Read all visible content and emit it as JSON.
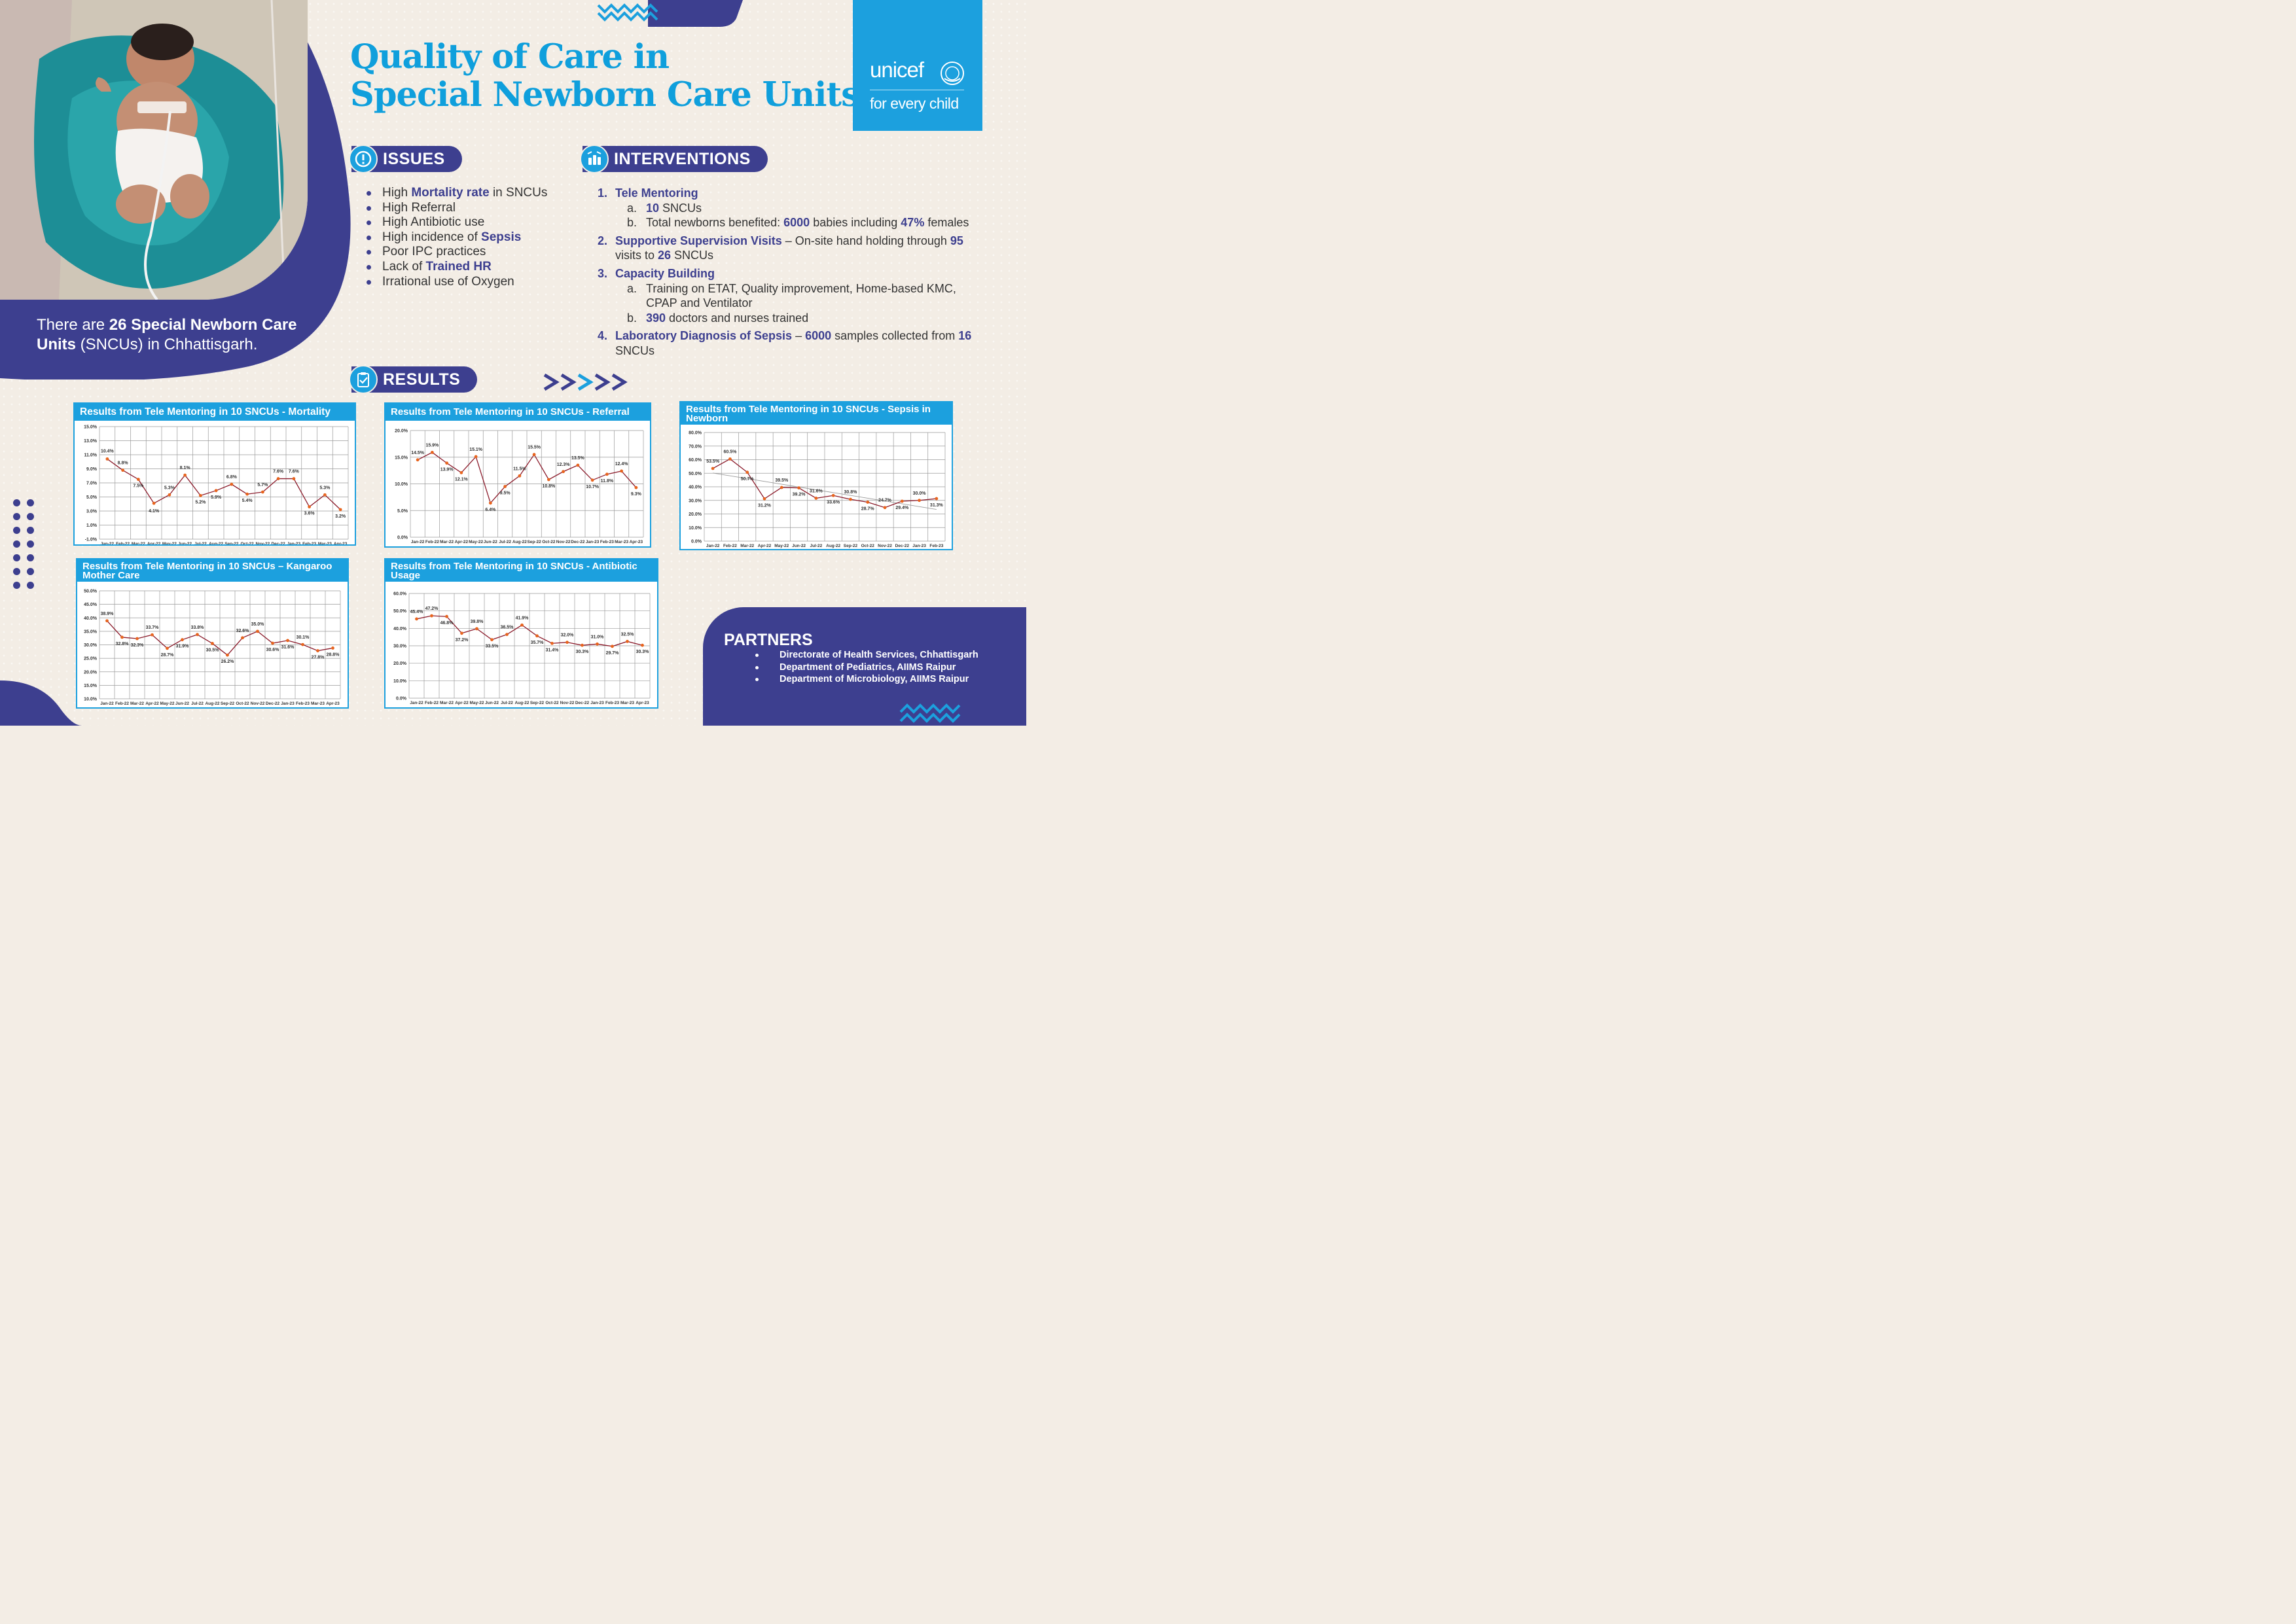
{
  "hero": {
    "photo_alt": "Newborn baby lying on a teal blanket in a care unit",
    "text_pre": "There are ",
    "text_bold1": "26 Special Newborn Care",
    "text_bold2": "Units",
    "text_post": " (SNCUs) in Chhattisgarh."
  },
  "title": {
    "line1": "Quality of Care in",
    "line2": "Special Newborn Care Units"
  },
  "logo": {
    "name": "unicef",
    "tagline": "for every child",
    "icon": "unicef-emblem-icon"
  },
  "colors": {
    "navy": "#3d3f8f",
    "blue": "#1ca0de",
    "line": "#8b1a2a",
    "marker": "#e8641e",
    "trend": "#9a9a9a"
  },
  "issues": {
    "heading": "ISSUES",
    "icon": "exclamation-icon",
    "items": [
      {
        "pre": "High ",
        "bold": "Mortality rate",
        "post": " in SNCUs"
      },
      {
        "pre": "High Referral",
        "bold": "",
        "post": ""
      },
      {
        "pre": "High Antibiotic use",
        "bold": "",
        "post": ""
      },
      {
        "pre": "High incidence of ",
        "bold": "Sepsis",
        "post": ""
      },
      {
        "pre": "Poor IPC practices",
        "bold": "",
        "post": ""
      },
      {
        "pre": "Lack of ",
        "bold": "Trained HR",
        "post": ""
      },
      {
        "pre": "Irrational use of Oxygen",
        "bold": "",
        "post": ""
      }
    ]
  },
  "interventions": {
    "heading": "INTERVENTIONS",
    "icon": "hands-icon",
    "i1": {
      "num": "1.",
      "title": "Tele Mentoring",
      "a_label": "a.",
      "a_bold": "10",
      "a_text": " SNCUs",
      "b_label": "b.",
      "b_pre": "Total newborns benefited: ",
      "b_bold1": "6000",
      "b_mid": " babies including ",
      "b_bold2": "47%",
      "b_post": " females"
    },
    "i2": {
      "num": "2.",
      "title": "Supportive Supervision Visits",
      "pre": " – On-site hand holding through ",
      "bold1": "95",
      "mid": " visits to ",
      "bold2": "26",
      "post": " SNCUs"
    },
    "i3": {
      "num": "3.",
      "title": "Capacity Building",
      "a_label": "a.",
      "a_text": "Training on ETAT, Quality improvement, Home-based KMC, CPAP and Ventilator",
      "b_label": "b.",
      "b_bold": "390",
      "b_text": " doctors and nurses trained"
    },
    "i4": {
      "num": "4.",
      "title": "Laboratory Diagnosis of Sepsis",
      "pre": " – ",
      "bold1": "6000",
      "mid": " samples collected from ",
      "bold2": "16",
      "post": " SNCUs"
    }
  },
  "results": {
    "heading": "RESULTS",
    "icon": "clipboard-icon"
  },
  "partners": {
    "heading": "PARTNERS",
    "items": [
      "Directorate of Health Services, Chhattisgarh",
      "Department of Pediatrics, AIIMS Raipur",
      "Department of Microbiology, AIIMS Raipur"
    ]
  },
  "chart_data": [
    {
      "type": "line",
      "title": "Results from Tele Mentoring in 10 SNCUs - Mortality",
      "categories": [
        "Jan-22",
        "Feb-22",
        "Mar-22",
        "Apr-22",
        "May-22",
        "Jun-22",
        "Jul-22",
        "Aug-22",
        "Sep-22",
        "Oct-22",
        "Nov-22",
        "Dec-22",
        "Jan-23",
        "Feb-23",
        "Mar-23",
        "Apr-23"
      ],
      "values": [
        10.4,
        8.8,
        7.5,
        4.1,
        5.3,
        8.1,
        5.2,
        5.9,
        6.8,
        5.4,
        5.7,
        7.6,
        7.6,
        3.6,
        5.3,
        3.2
      ],
      "ylim": [
        -1,
        15
      ],
      "yticks": [
        15,
        13,
        11,
        9,
        7,
        5,
        3,
        1,
        -1
      ],
      "ytick_labels": [
        "15.0%",
        "13.0%",
        "11.0%",
        "9.0%",
        "7.0%",
        "5.0%",
        "3.0%",
        "1.0%",
        "-1.0%"
      ],
      "labels": [
        "10.4%",
        "8.8%",
        "7.5%",
        "4.1%",
        "5.3%",
        "8.1%",
        "5.2%",
        "5.9%",
        "6.8%",
        "5.4%",
        "5.7%",
        "7.6%",
        "7.6%",
        "3.6%",
        "5.3%",
        "3.2%"
      ],
      "grid": true,
      "trendline": false
    },
    {
      "type": "line",
      "title": "Results from Tele Mentoring in 10 SNCUs - Referral",
      "categories": [
        "Jan-22",
        "Feb-22",
        "Mar-22",
        "Apr-22",
        "May-22",
        "Jun-22",
        "Jul-22",
        "Aug-22",
        "Sep-22",
        "Oct-22",
        "Nov-22",
        "Dec-22",
        "Jan-23",
        "Feb-23",
        "Mar-23",
        "Apr-23"
      ],
      "values": [
        14.5,
        15.9,
        13.9,
        12.1,
        15.1,
        6.4,
        9.5,
        11.5,
        15.5,
        10.8,
        12.3,
        13.5,
        10.7,
        11.8,
        12.4,
        9.3
      ],
      "ylim": [
        0,
        20
      ],
      "yticks": [
        20,
        15,
        10,
        5,
        0
      ],
      "ytick_labels": [
        "20.0%",
        "15.0%",
        "10.0%",
        "5.0%",
        "0.0%"
      ],
      "labels": [
        "14.5%",
        "15.9%",
        "13.9%",
        "12.1%",
        "15.1%",
        "6.4%",
        "9.5%",
        "11.5%",
        "15.5%",
        "10.8%",
        "12.3%",
        "13.5%",
        "10.7%",
        "11.8%",
        "12.4%",
        "9.3%"
      ],
      "grid": true,
      "trendline": false
    },
    {
      "type": "line",
      "title": "Results from Tele Mentoring in 10 SNCUs - Sepsis in Newborn",
      "categories": [
        "Jan-22",
        "Feb-22",
        "Mar-22",
        "Apr-22",
        "May-22",
        "Jun-22",
        "Jul-22",
        "Aug-22",
        "Sep-22",
        "Oct-22",
        "Nov-22",
        "Dec-22",
        "Jan-23",
        "Feb-23"
      ],
      "values": [
        53.5,
        60.5,
        50.7,
        31.2,
        39.5,
        39.2,
        31.6,
        33.6,
        30.8,
        28.7,
        24.7,
        29.4,
        30.0,
        31.3
      ],
      "ylim": [
        0,
        80
      ],
      "yticks": [
        80,
        70,
        60,
        50,
        40,
        30,
        20,
        10,
        0
      ],
      "ytick_labels": [
        "80.0%",
        "70.0%",
        "60.0%",
        "50.0%",
        "40.0%",
        "30.0%",
        "20.0%",
        "10.0%",
        "0.0%"
      ],
      "labels": [
        "53.5%",
        "60.5%",
        "50.7%",
        "31.2%",
        "39.5%",
        "39.2%",
        "31.6%",
        "33.6%",
        "30.8%",
        "28.7%",
        "24.7%",
        "29.4%",
        "30.0%",
        "31.3%"
      ],
      "grid": true,
      "trendline": true
    },
    {
      "type": "line",
      "title": "Results from Tele Mentoring in 10 SNCUs – Kangaroo Mother Care",
      "categories": [
        "Jan-22",
        "Feb-22",
        "Mar-22",
        "Apr-22",
        "May-22",
        "Jun-22",
        "Jul-22",
        "Aug-22",
        "Sep-22",
        "Oct-22",
        "Nov-22",
        "Dec-22",
        "Jan-23",
        "Feb-23",
        "Mar-23",
        "Apr-23"
      ],
      "values": [
        38.9,
        32.8,
        32.3,
        33.7,
        28.7,
        31.9,
        33.8,
        30.5,
        26.2,
        32.6,
        35.0,
        30.6,
        31.6,
        30.1,
        27.8,
        28.8
      ],
      "ylim": [
        10,
        50
      ],
      "yticks": [
        50,
        45,
        40,
        35,
        30,
        25,
        20,
        15,
        10
      ],
      "ytick_labels": [
        "50.0%",
        "45.0%",
        "40.0%",
        "35.0%",
        "30.0%",
        "25.0%",
        "20.0%",
        "15.0%",
        "10.0%"
      ],
      "labels": [
        "38.9%",
        "32.8%",
        "32.3%",
        "33.7%",
        "28.7%",
        "31.9%",
        "33.8%",
        "30.5%",
        "26.2%",
        "32.6%",
        "35.0%",
        "30.6%",
        "31.6%",
        "30.1%",
        "27.8%",
        "28.8%"
      ],
      "grid": true,
      "trendline": false
    },
    {
      "type": "line",
      "title": "Results from Tele Mentoring in 10 SNCUs - Antibiotic Usage",
      "categories": [
        "Jan-22",
        "Feb-22",
        "Mar-22",
        "Apr-22",
        "May-22",
        "Jun-22",
        "Jul-22",
        "Aug-22",
        "Sep-22",
        "Oct-22",
        "Nov-22",
        "Dec-22",
        "Jan-23",
        "Feb-23",
        "Mar-23",
        "Apr-23"
      ],
      "values": [
        45.4,
        47.2,
        46.8,
        37.2,
        39.8,
        33.5,
        36.5,
        41.9,
        35.7,
        31.4,
        32.0,
        30.3,
        31.0,
        29.7,
        32.5,
        30.3
      ],
      "ylim": [
        0,
        60
      ],
      "yticks": [
        60,
        50,
        40,
        30,
        20,
        10,
        0
      ],
      "ytick_labels": [
        "60.0%",
        "50.0%",
        "40.0%",
        "30.0%",
        "20.0%",
        "10.0%",
        "0.0%"
      ],
      "labels": [
        "45.4%",
        "47.2%",
        "46.8%",
        "37.2%",
        "39.8%",
        "33.5%",
        "36.5%",
        "41.9%",
        "35.7%",
        "31.4%",
        "32.0%",
        "30.3%",
        "31.0%",
        "29.7%",
        "32.5%",
        "30.3%"
      ],
      "grid": true,
      "trendline": false
    }
  ]
}
